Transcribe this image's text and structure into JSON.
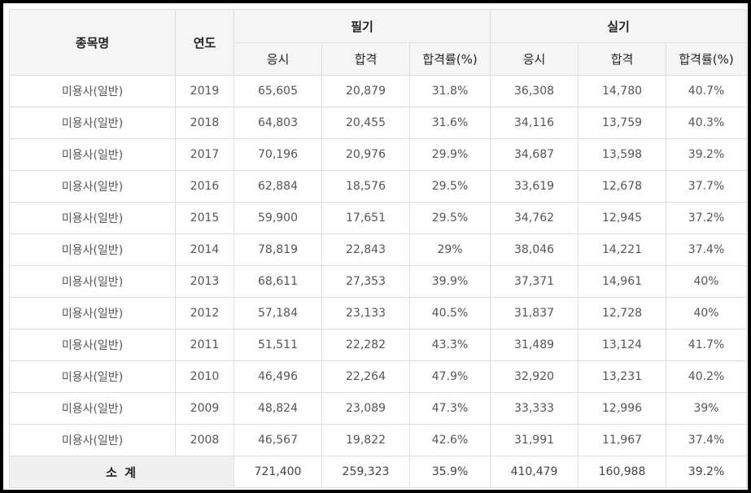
{
  "header": {
    "col_name": "종목명",
    "col_year": "연도",
    "group_written": "필기",
    "group_practical": "실기",
    "sub_written": [
      "응시",
      "합격",
      "합격률(%)"
    ],
    "sub_practical": [
      "응시",
      "합격",
      "합격률(%)"
    ]
  },
  "rows": [
    {
      "name": "미용사(일반)",
      "year": "2019",
      "w_applicants": "65,605",
      "w_passed": "20,879",
      "w_rate": "31.8%",
      "p_applicants": "36,308",
      "p_passed": "14,780",
      "p_rate": "40.7%"
    },
    {
      "name": "미용사(일반)",
      "year": "2018",
      "w_applicants": "64,803",
      "w_passed": "20,455",
      "w_rate": "31.6%",
      "p_applicants": "34,116",
      "p_passed": "13,759",
      "p_rate": "40.3%"
    },
    {
      "name": "미용사(일반)",
      "year": "2017",
      "w_applicants": "70,196",
      "w_passed": "20,976",
      "w_rate": "29.9%",
      "p_applicants": "34,687",
      "p_passed": "13,598",
      "p_rate": "39.2%"
    },
    {
      "name": "미용사(일반)",
      "year": "2016",
      "w_applicants": "62,884",
      "w_passed": "18,576",
      "w_rate": "29.5%",
      "p_applicants": "33,619",
      "p_passed": "12,678",
      "p_rate": "37.7%"
    },
    {
      "name": "미용사(일반)",
      "year": "2015",
      "w_applicants": "59,900",
      "w_passed": "17,651",
      "w_rate": "29.5%",
      "p_applicants": "34,762",
      "p_passed": "12,945",
      "p_rate": "37.2%"
    },
    {
      "name": "미용사(일반)",
      "year": "2014",
      "w_applicants": "78,819",
      "w_passed": "22,843",
      "w_rate": "29%",
      "p_applicants": "38,046",
      "p_passed": "14,221",
      "p_rate": "37.4%"
    },
    {
      "name": "미용사(일반)",
      "year": "2013",
      "w_applicants": "68,611",
      "w_passed": "27,353",
      "w_rate": "39.9%",
      "p_applicants": "37,371",
      "p_passed": "14,961",
      "p_rate": "40%"
    },
    {
      "name": "미용사(일반)",
      "year": "2012",
      "w_applicants": "57,184",
      "w_passed": "23,133",
      "w_rate": "40.5%",
      "p_applicants": "31,837",
      "p_passed": "12,728",
      "p_rate": "40%"
    },
    {
      "name": "미용사(일반)",
      "year": "2011",
      "w_applicants": "51,511",
      "w_passed": "22,282",
      "w_rate": "43.3%",
      "p_applicants": "31,489",
      "p_passed": "13,124",
      "p_rate": "41.7%"
    },
    {
      "name": "미용사(일반)",
      "year": "2010",
      "w_applicants": "46,496",
      "w_passed": "22,264",
      "w_rate": "47.9%",
      "p_applicants": "32,920",
      "p_passed": "13,231",
      "p_rate": "40.2%"
    },
    {
      "name": "미용사(일반)",
      "year": "2009",
      "w_applicants": "48,824",
      "w_passed": "23,089",
      "w_rate": "47.3%",
      "p_applicants": "33,333",
      "p_passed": "12,996",
      "p_rate": "39%"
    },
    {
      "name": "미용사(일반)",
      "year": "2008",
      "w_applicants": "46,567",
      "w_passed": "19,822",
      "w_rate": "42.6%",
      "p_applicants": "31,991",
      "p_passed": "11,967",
      "p_rate": "37.4%"
    }
  ],
  "total": {
    "label": "소 계",
    "w_applicants": "721,400",
    "w_passed": "259,323",
    "w_rate": "35.9%",
    "p_applicants": "410,479",
    "p_passed": "160,988",
    "p_rate": "39.2%"
  },
  "colors": {
    "frame": "#000000",
    "header_bg": "#f5f5f5",
    "border": "#dedede",
    "text": "#555555"
  }
}
